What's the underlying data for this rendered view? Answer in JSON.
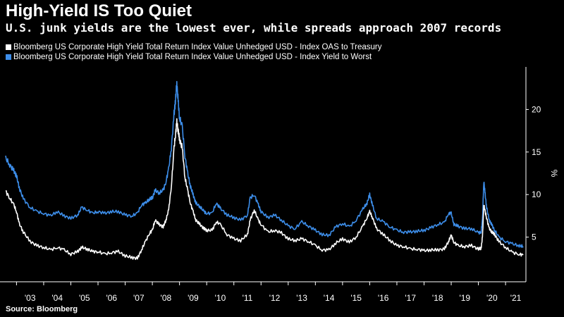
{
  "header": {
    "title": "High-Yield IS Too Quiet",
    "subtitle": "U.S. junk yields are the lowest ever, while spreads approach 2007 records"
  },
  "legend": [
    {
      "label": "Bloomberg US Corporate High Yield Total Return Index Value Unhedged USD - Index OAS to Treasury",
      "color": "#ffffff"
    },
    {
      "label": "Bloomberg US Corporate High Yield Total Return Index Value Unhedged USD - Index Yield to Worst",
      "color": "#3d8eea"
    }
  ],
  "footer": {
    "source": "Source: Bloomberg"
  },
  "chart_data": {
    "type": "line",
    "title": "High-Yield IS Too Quiet",
    "subtitle": "U.S. junk yields are the lowest ever, while spreads approach 2007 records",
    "ylabel": "%",
    "ylim": [
      0,
      25
    ],
    "xlim": [
      2002.6,
      2021.75
    ],
    "y_ticks": [
      5,
      10,
      15,
      20
    ],
    "x_ticks": [
      "'03",
      "'04",
      "'05",
      "'06",
      "'07",
      "'08",
      "'09",
      "'10",
      "'11",
      "'12",
      "'13",
      "'14",
      "'15",
      "'16",
      "'17",
      "'18",
      "'19",
      "'20",
      "'21"
    ],
    "grid": false,
    "legend_position": "top-left",
    "series": [
      {
        "name": "Bloomberg US Corporate High Yield Total Return Index Value Unhedged USD - Index OAS to Treasury",
        "color": "#ffffff",
        "x": [
          2002.6,
          2002.75,
          2002.9,
          2003.0,
          2003.1,
          2003.25,
          2003.5,
          2003.75,
          2004.0,
          2004.25,
          2004.5,
          2004.75,
          2005.0,
          2005.25,
          2005.4,
          2005.6,
          2005.8,
          2006.0,
          2006.25,
          2006.5,
          2006.75,
          2007.0,
          2007.25,
          2007.45,
          2007.6,
          2007.75,
          2007.9,
          2008.0,
          2008.1,
          2008.25,
          2008.4,
          2008.5,
          2008.6,
          2008.7,
          2008.8,
          2008.85,
          2008.9,
          2008.95,
          2009.0,
          2009.1,
          2009.2,
          2009.3,
          2009.4,
          2009.5,
          2009.6,
          2009.75,
          2009.9,
          2010.0,
          2010.2,
          2010.35,
          2010.5,
          2010.75,
          2011.0,
          2011.25,
          2011.5,
          2011.6,
          2011.75,
          2011.9,
          2012.0,
          2012.25,
          2012.5,
          2012.75,
          2013.0,
          2013.25,
          2013.5,
          2013.75,
          2014.0,
          2014.25,
          2014.5,
          2014.75,
          2015.0,
          2015.25,
          2015.5,
          2015.75,
          2015.9,
          2016.0,
          2016.1,
          2016.25,
          2016.5,
          2016.75,
          2017.0,
          2017.25,
          2017.5,
          2017.75,
          2018.0,
          2018.25,
          2018.5,
          2018.75,
          2018.9,
          2019.0,
          2019.1,
          2019.25,
          2019.5,
          2019.75,
          2020.0,
          2020.1,
          2020.15,
          2020.2,
          2020.25,
          2020.3,
          2020.4,
          2020.5,
          2020.6,
          2020.75,
          2021.0,
          2021.25,
          2021.5,
          2021.65
        ],
        "values": [
          10.4,
          9.6,
          8.8,
          8.0,
          6.6,
          5.6,
          4.5,
          4.0,
          3.8,
          3.5,
          3.8,
          3.5,
          3.0,
          3.3,
          3.8,
          3.6,
          3.3,
          3.3,
          3.0,
          3.2,
          3.3,
          2.8,
          2.6,
          2.5,
          3.5,
          4.5,
          5.5,
          5.8,
          7.0,
          6.5,
          6.2,
          7.0,
          8.2,
          11.0,
          15.5,
          17.0,
          18.5,
          17.5,
          16.5,
          15.5,
          12.0,
          10.5,
          9.0,
          8.0,
          7.0,
          6.5,
          6.0,
          5.8,
          5.8,
          6.8,
          6.5,
          5.3,
          4.8,
          4.6,
          5.3,
          7.0,
          8.2,
          7.0,
          6.5,
          5.6,
          5.8,
          5.5,
          4.8,
          4.6,
          4.8,
          4.5,
          4.0,
          3.5,
          3.5,
          4.3,
          4.8,
          4.4,
          5.0,
          6.3,
          7.3,
          8.0,
          7.3,
          6.0,
          5.3,
          4.6,
          4.0,
          3.9,
          3.6,
          3.6,
          3.4,
          3.5,
          3.5,
          3.6,
          4.5,
          5.2,
          4.4,
          4.0,
          3.9,
          4.0,
          3.6,
          3.7,
          5.0,
          8.8,
          8.0,
          7.3,
          6.0,
          5.6,
          5.3,
          4.5,
          3.8,
          3.2,
          3.0,
          2.9
        ]
      },
      {
        "name": "Bloomberg US Corporate High Yield Total Return Index Value Unhedged USD - Index Yield to Worst",
        "color": "#3d8eea",
        "x": [
          2002.6,
          2002.75,
          2002.9,
          2003.0,
          2003.1,
          2003.25,
          2003.5,
          2003.75,
          2004.0,
          2004.25,
          2004.5,
          2004.75,
          2005.0,
          2005.25,
          2005.4,
          2005.6,
          2005.8,
          2006.0,
          2006.25,
          2006.5,
          2006.75,
          2007.0,
          2007.25,
          2007.45,
          2007.6,
          2007.75,
          2007.9,
          2008.0,
          2008.1,
          2008.25,
          2008.4,
          2008.5,
          2008.6,
          2008.7,
          2008.8,
          2008.85,
          2008.9,
          2008.95,
          2009.0,
          2009.1,
          2009.2,
          2009.3,
          2009.4,
          2009.5,
          2009.6,
          2009.75,
          2009.9,
          2010.0,
          2010.2,
          2010.35,
          2010.5,
          2010.75,
          2011.0,
          2011.25,
          2011.5,
          2011.6,
          2011.75,
          2011.9,
          2012.0,
          2012.25,
          2012.5,
          2012.75,
          2013.0,
          2013.25,
          2013.5,
          2013.75,
          2014.0,
          2014.25,
          2014.5,
          2014.75,
          2015.0,
          2015.25,
          2015.5,
          2015.75,
          2015.9,
          2016.0,
          2016.1,
          2016.25,
          2016.5,
          2016.75,
          2017.0,
          2017.25,
          2017.5,
          2017.75,
          2018.0,
          2018.25,
          2018.5,
          2018.75,
          2018.9,
          2019.0,
          2019.1,
          2019.25,
          2019.5,
          2019.75,
          2020.0,
          2020.1,
          2020.15,
          2020.2,
          2020.25,
          2020.3,
          2020.4,
          2020.5,
          2020.6,
          2020.75,
          2021.0,
          2021.25,
          2021.5,
          2021.65
        ],
        "values": [
          14.3,
          13.5,
          12.8,
          12.2,
          10.8,
          9.5,
          8.5,
          8.0,
          7.8,
          7.5,
          8.0,
          7.5,
          7.2,
          7.6,
          8.5,
          8.2,
          7.8,
          8.0,
          7.8,
          8.0,
          8.0,
          7.6,
          7.5,
          7.8,
          8.8,
          9.0,
          9.5,
          9.6,
          10.5,
          10.2,
          10.5,
          11.5,
          13.0,
          15.5,
          19.5,
          21.0,
          23.0,
          21.0,
          19.0,
          18.0,
          14.5,
          12.5,
          11.0,
          10.0,
          9.0,
          8.6,
          8.0,
          7.8,
          7.8,
          9.0,
          8.4,
          7.6,
          7.3,
          7.0,
          7.6,
          9.6,
          10.0,
          8.8,
          8.0,
          7.3,
          7.6,
          7.0,
          6.3,
          6.0,
          6.8,
          6.3,
          5.8,
          5.3,
          5.2,
          6.2,
          6.6,
          6.2,
          7.0,
          8.3,
          9.0,
          10.0,
          8.8,
          7.2,
          6.8,
          6.2,
          5.8,
          5.6,
          5.6,
          5.7,
          5.8,
          6.1,
          6.5,
          6.7,
          7.8,
          7.8,
          6.5,
          6.3,
          6.0,
          6.0,
          5.5,
          5.6,
          7.0,
          11.6,
          10.0,
          8.5,
          7.0,
          6.4,
          5.8,
          5.0,
          4.5,
          4.2,
          4.0,
          3.9
        ]
      }
    ]
  }
}
